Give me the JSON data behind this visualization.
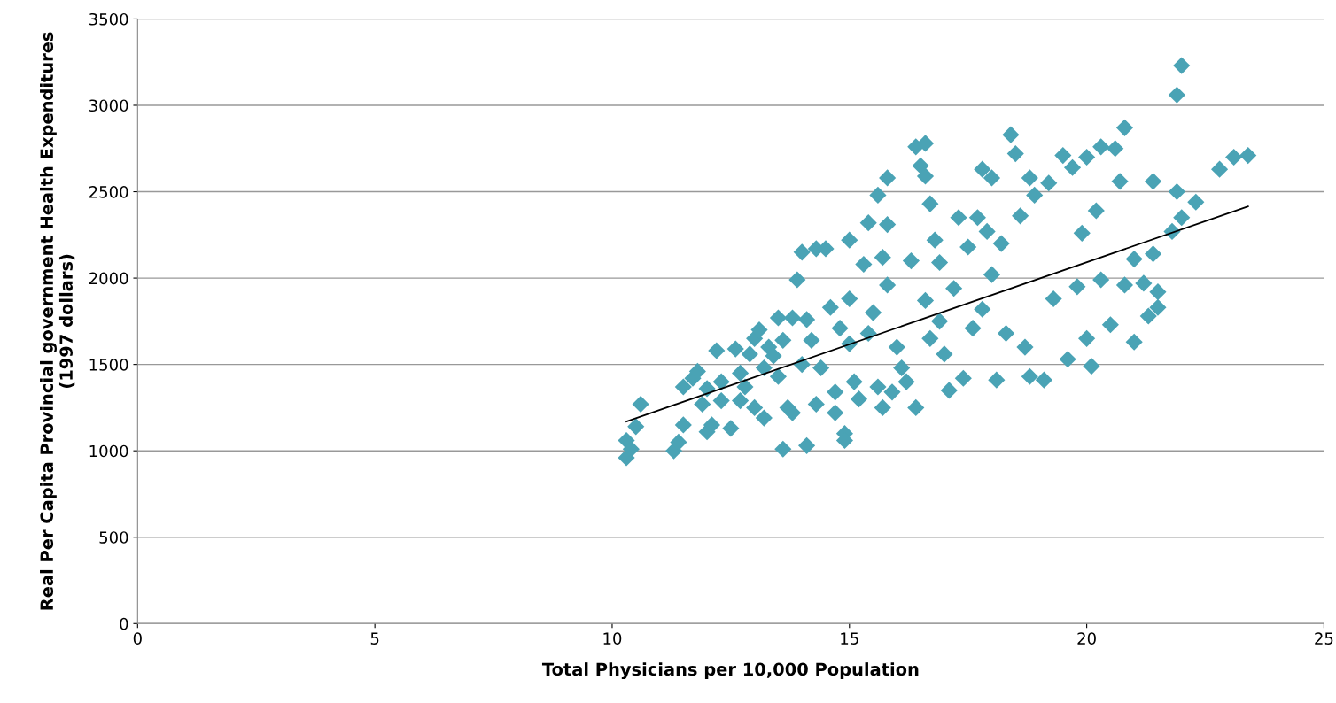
{
  "chart_data": {
    "type": "scatter",
    "xlabel": "Total Physicians per 10,000 Population",
    "ylabel": "Real Per Capita Provincial government Health Expenditures\n(1997 dollars)",
    "xlim": [
      0,
      25
    ],
    "xticks": [
      0,
      5,
      10,
      15,
      20,
      25
    ],
    "ylim": [
      0,
      3500
    ],
    "yticks": [
      0,
      500,
      1000,
      1500,
      2000,
      2500,
      3000,
      3500
    ],
    "grid": "y",
    "marker": "diamond",
    "series": [
      {
        "color": "#4aa3b5",
        "x": [
          10.3,
          10.3,
          10.4,
          10.5,
          10.6,
          11.3,
          11.4,
          11.5,
          11.5,
          11.7,
          11.8,
          11.9,
          12.0,
          12.0,
          12.1,
          12.2,
          12.3,
          12.3,
          12.5,
          12.6,
          12.7,
          12.7,
          12.8,
          12.9,
          13.0,
          13.0,
          13.1,
          13.2,
          13.2,
          13.3,
          13.4,
          13.5,
          13.5,
          13.6,
          13.6,
          13.7,
          13.8,
          13.8,
          13.9,
          14.0,
          14.0,
          14.1,
          14.2,
          14.1,
          14.3,
          14.3,
          14.4,
          14.5,
          14.6,
          14.7,
          14.7,
          14.8,
          14.9,
          14.9,
          15.0,
          15.0,
          15.0,
          15.1,
          15.2,
          15.3,
          15.4,
          15.4,
          15.5,
          15.6,
          15.6,
          15.7,
          15.7,
          15.8,
          15.8,
          15.8,
          15.9,
          16.0,
          16.1,
          16.2,
          16.3,
          16.4,
          16.5,
          16.6,
          16.6,
          16.7,
          16.4,
          16.6,
          16.7,
          16.8,
          16.9,
          16.9,
          17.0,
          17.1,
          17.2,
          17.3,
          17.4,
          17.5,
          17.6,
          17.7,
          17.8,
          17.8,
          17.9,
          18.0,
          18.0,
          18.1,
          18.2,
          18.3,
          18.4,
          18.5,
          18.6,
          18.7,
          18.8,
          18.9,
          18.8,
          19.1,
          19.2,
          19.3,
          19.5,
          19.6,
          19.7,
          19.8,
          19.9,
          20.0,
          20.0,
          20.1,
          20.2,
          20.3,
          20.3,
          20.5,
          20.6,
          20.7,
          20.8,
          20.8,
          21.0,
          21.0,
          21.2,
          21.3,
          21.4,
          21.4,
          21.5,
          21.5,
          21.8,
          21.9,
          21.9,
          22.0,
          22.0,
          22.3,
          22.8,
          23.1,
          23.4
        ],
        "values": [
          1060,
          960,
          1010,
          1140,
          1270,
          1000,
          1050,
          1150,
          1370,
          1420,
          1460,
          1270,
          1110,
          1360,
          1150,
          1580,
          1400,
          1290,
          1130,
          1590,
          1450,
          1290,
          1370,
          1560,
          1650,
          1250,
          1700,
          1190,
          1480,
          1600,
          1550,
          1770,
          1430,
          1640,
          1010,
          1250,
          1220,
          1770,
          1990,
          2150,
          1500,
          1760,
          1640,
          1030,
          2170,
          1270,
          1480,
          2170,
          1830,
          1220,
          1340,
          1710,
          1100,
          1060,
          1880,
          2220,
          1620,
          1400,
          1300,
          2080,
          2320,
          1680,
          1800,
          2480,
          1370,
          2120,
          1250,
          2310,
          2580,
          1960,
          1340,
          1600,
          1480,
          1400,
          2100,
          2760,
          2650,
          2780,
          2590,
          2430,
          1250,
          1870,
          1650,
          2220,
          2090,
          1750,
          1560,
          1350,
          1940,
          2350,
          1420,
          2180,
          1710,
          2350,
          2630,
          1820,
          2270,
          2580,
          2020,
          1410,
          2200,
          1680,
          2830,
          2720,
          2360,
          1600,
          2580,
          2480,
          1430,
          1410,
          2550,
          1880,
          2710,
          1530,
          2640,
          1950,
          2260,
          2700,
          1650,
          1490,
          2390,
          2760,
          1990,
          1730,
          2750,
          2560,
          2870,
          1960,
          1630,
          2110,
          1970,
          1780,
          2560,
          2140,
          1830,
          1920,
          2270,
          2500,
          3060,
          3230,
          2350,
          2440,
          2630,
          2700,
          2710
        ]
      },
      {
        "type": "line",
        "color": "#000000",
        "marker": "none",
        "x": [
          10.3,
          23.4
        ],
        "values": [
          1170,
          2415
        ]
      }
    ]
  }
}
